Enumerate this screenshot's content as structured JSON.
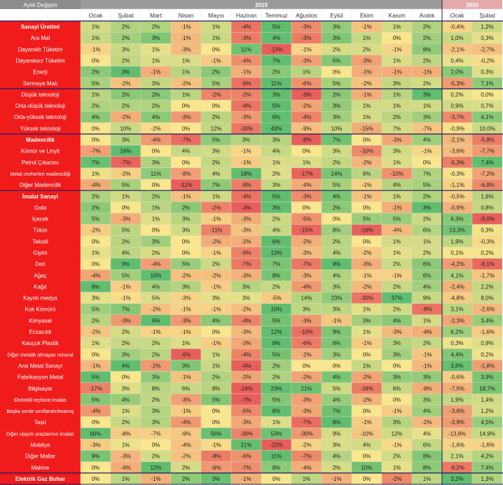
{
  "chart_data": {
    "type": "heatmap",
    "corner_label": "Aylık Değişim",
    "years": [
      {
        "label": "2019",
        "span": 12
      },
      {
        "label": "2020",
        "span": 2
      }
    ],
    "months": [
      "Ocak",
      "Şubat",
      "Mart",
      "Nisan",
      "Mayıs",
      "Haziran",
      "Temmuz",
      "Ağustos",
      "Eylül",
      "Ekim",
      "Kasım",
      "Aralık",
      "Ocak",
      "Şubat"
    ],
    "rows": [
      {
        "label": "Sanayi Üretimi",
        "bold": true,
        "group_start": true,
        "values": [
          "1%",
          "2%",
          "2%",
          "-1%",
          "1%",
          "-4%",
          "5%",
          "-3%",
          "3%",
          "-1%",
          "1%",
          "2%",
          "-0,4%",
          "1,2%"
        ]
      },
      {
        "label": "Ara Mal",
        "values": [
          "1%",
          "2%",
          "3%",
          "-1%",
          "1%",
          "-3%",
          "4%",
          "-3%",
          "3%",
          "1%",
          "0%",
          "2%",
          "1,0%",
          "0,3%"
        ]
      },
      {
        "label": "Dayanıklı Tüketim",
        "values": [
          "-1%",
          "3%",
          "1%",
          "-3%",
          "0%",
          "11%",
          "-13%",
          "-1%",
          "2%",
          "2%",
          "-1%",
          "8%",
          "-2,1%",
          "-2,7%"
        ]
      },
      {
        "label": "Dayanıksız Tüketim",
        "values": [
          "0%",
          "2%",
          "1%",
          "1%",
          "-1%",
          "-4%",
          "7%",
          "-3%",
          "5%",
          "-3%",
          "1%",
          "2%",
          "0,4%",
          "-0,2%"
        ]
      },
      {
        "label": "Enerji",
        "values": [
          "2%",
          "3%",
          "-1%",
          "1%",
          "2%",
          "-1%",
          "2%",
          "1%",
          "0%",
          "-1%",
          "-1%",
          "-1%",
          "2,0%",
          "0,3%"
        ]
      },
      {
        "label": "Sermaye Malı",
        "values": [
          "5%",
          "-2%",
          "3%",
          "-2%",
          "5%",
          "-9%",
          "11%",
          "-6%",
          "5%",
          "-2%",
          "3%",
          "2%",
          "-5,3%",
          "7,1%"
        ]
      },
      {
        "label": "Düşük teknoloji",
        "group_start": true,
        "values": [
          "1%",
          "2%",
          "2%",
          "1%",
          "-2%",
          "-2%",
          "3%",
          "-3%",
          "2%",
          "-1%",
          "1%",
          "3%",
          "0,2%",
          "0,0%"
        ]
      },
      {
        "label": "Orta-düşük teknoloji",
        "values": [
          "2%",
          "2%",
          "2%",
          "0%",
          "0%",
          "-4%",
          "5%",
          "-2%",
          "3%",
          "1%",
          "1%",
          "1%",
          "0,9%",
          "0,7%"
        ]
      },
      {
        "label": "Orta-yüksek teknoloji",
        "values": [
          "4%",
          "-2%",
          "4%",
          "-3%",
          "2%",
          "-3%",
          "6%",
          "-4%",
          "3%",
          "1%",
          "2%",
          "3%",
          "-3,7%",
          "4,1%"
        ]
      },
      {
        "label": "Yüksek teknoloji",
        "values": [
          "0%",
          "10%",
          "-2%",
          "0%",
          "12%",
          "-33%",
          "43%",
          "-9%",
          "10%",
          "-15%",
          "7%",
          "-7%",
          "-0,9%",
          "10,0%"
        ]
      },
      {
        "label": "Madencilik",
        "bold": true,
        "group_start": true,
        "values": [
          "0%",
          "3%",
          "-4%",
          "-7%",
          "5%",
          "3%",
          "3%",
          "-8%",
          "7%",
          "0%",
          "-3%",
          "4%",
          "-2,1%",
          "-5,8%"
        ]
      },
      {
        "label": "Kömür ve Linyit",
        "values": [
          "-7%",
          "16%",
          "0%",
          "4%",
          "3%",
          "-1%",
          "4%",
          "0%",
          "3%",
          "-10%",
          "3%",
          "-1%",
          "-3,6%",
          "-7,7%"
        ]
      },
      {
        "label": "Petrol Çıkarımı",
        "values": [
          "7%",
          "-7%",
          "3%",
          "0%",
          "2%",
          "-1%",
          "1%",
          "1%",
          "2%",
          "-2%",
          "1%",
          "0%",
          "-5,3%",
          "7,4%"
        ]
      },
      {
        "label": "Metal cevherleri madenciliği",
        "values": [
          "1%",
          "-2%",
          "11%",
          "-8%",
          "4%",
          "18%",
          "2%",
          "-17%",
          "14%",
          "6%",
          "-10%",
          "7%",
          "-0,3%",
          "-7,2%"
        ]
      },
      {
        "label": "Diğer Madencilik",
        "values": [
          "-4%",
          "5%",
          "0%",
          "-11%",
          "7%",
          "-8%",
          "3%",
          "-4%",
          "5%",
          "-1%",
          "4%",
          "5%",
          "-1,1%",
          "-6,8%"
        ]
      },
      {
        "label": "İmalat Sanayi",
        "bold": true,
        "group_start": true,
        "values": [
          "2%",
          "1%",
          "2%",
          "-1%",
          "1%",
          "-4%",
          "5%",
          "-3%",
          "4%",
          "-1%",
          "1%",
          "2%",
          "-0,5%",
          "1,6%"
        ]
      },
      {
        "label": "Gıda",
        "values": [
          "2%",
          "0%",
          "1%",
          "2%",
          "-2%",
          "-3%",
          "3%",
          "0%",
          "2%",
          "0%",
          "-1%",
          "3%",
          "-0,9%",
          "0,8%"
        ]
      },
      {
        "label": "İçecek",
        "values": [
          "5%",
          "-3%",
          "1%",
          "3%",
          "-1%",
          "-3%",
          "2%",
          "-5%",
          "0%",
          "5%",
          "5%",
          "2%",
          "6,3%",
          "-9,0%"
        ]
      },
      {
        "label": "Tütün",
        "values": [
          "-2%",
          "5%",
          "0%",
          "3%",
          "-11%",
          "-3%",
          "4%",
          "-15%",
          "8%",
          "-16%",
          "-4%",
          "6%",
          "13,3%",
          "0,3%"
        ]
      },
      {
        "label": "Tekstil",
        "values": [
          "0%",
          "2%",
          "3%",
          "0%",
          "-2%",
          "-2%",
          "6%",
          "-2%",
          "2%",
          "0%",
          "1%",
          "1%",
          "1,9%",
          "-0,3%"
        ]
      },
      {
        "label": "Giyim",
        "values": [
          "1%",
          "4%",
          "2%",
          "0%",
          "-1%",
          "-9%",
          "13%",
          "-3%",
          "4%",
          "-2%",
          "1%",
          "2%",
          "0,1%",
          "0,2%"
        ]
      },
      {
        "label": "Deri",
        "values": [
          "0%",
          "9%",
          "-4%",
          "5%",
          "2%",
          "-7%",
          "7%",
          "-7%",
          "9%",
          "-3%",
          "2%",
          "6%",
          "-4,2%",
          "-8,1%"
        ]
      },
      {
        "label": "Ağaç",
        "values": [
          "-4%",
          "5%",
          "10%",
          "-2%",
          "-2%",
          "-3%",
          "8%",
          "-3%",
          "4%",
          "-1%",
          "-1%",
          "6%",
          "4,1%",
          "-1,7%"
        ]
      },
      {
        "label": "Kağıt",
        "values": [
          "8%",
          "-1%",
          "4%",
          "3%",
          "-1%",
          "3%",
          "2%",
          "-4%",
          "3%",
          "-2%",
          "2%",
          "4%",
          "-2,4%",
          "2,2%"
        ]
      },
      {
        "label": "Kayıtlı medya",
        "values": [
          "3%",
          "-1%",
          "5%",
          "-3%",
          "3%",
          "3%",
          "-5%",
          "14%",
          "23%",
          "-30%",
          "37%",
          "9%",
          "-4,8%",
          "8,0%"
        ]
      },
      {
        "label": "Kok Kömürü",
        "values": [
          "5%",
          "7%",
          "-2%",
          "-1%",
          "-1%",
          "-2%",
          "10%",
          "3%",
          "3%",
          "1%",
          "2%",
          "-8%",
          "3,1%",
          "-2,6%"
        ]
      },
      {
        "label": "Kimyasal",
        "values": [
          "2%",
          "-3%",
          "6%",
          "-3%",
          "4%",
          "-4%",
          "5%",
          "-3%",
          "-1%",
          "3%",
          "4%",
          "1%",
          "-2,3%",
          "3,4%"
        ]
      },
      {
        "label": "Eczacılık",
        "values": [
          "-2%",
          "2%",
          "-1%",
          "-1%",
          "0%",
          "-3%",
          "12%",
          "-10%",
          "9%",
          "1%",
          "-3%",
          "-4%",
          "6,2%",
          "-1,6%"
        ]
      },
      {
        "label": "Kauçuk Plastik",
        "values": [
          "1%",
          "2%",
          "2%",
          "1%",
          "-1%",
          "-3%",
          "8%",
          "-6%",
          "6%",
          "-1%",
          "3%",
          "2%",
          "0,3%",
          "0,9%"
        ]
      },
      {
        "label": "Diğer metalik olmayan mineral",
        "values": [
          "0%",
          "3%",
          "2%",
          "-6%",
          "1%",
          "-4%",
          "5%",
          "-2%",
          "3%",
          "0%",
          "3%",
          "-1%",
          "4,4%",
          "0,2%"
        ]
      },
      {
        "label": "Ana Metal Sanayi",
        "values": [
          "-1%",
          "4%",
          "-2%",
          "3%",
          "1%",
          "-4%",
          "2%",
          "0%",
          "0%",
          "1%",
          "0%",
          "-1%",
          "3,8%",
          "-1,8%"
        ]
      },
      {
        "label": "Fabrikasyon Metal",
        "values": [
          "5%",
          "0%",
          "3%",
          "-1%",
          "2%",
          "-2%",
          "2%",
          "-2%",
          "4%",
          "-2%",
          "3%",
          "3%",
          "-0,6%",
          "3,9%"
        ]
      },
      {
        "label": "Bilgisayar",
        "values": [
          "-17%",
          "3%",
          "8%",
          "6%",
          "8%",
          "-24%",
          "23%",
          "21%",
          "5%",
          "-18%",
          "6%",
          "-8%",
          "-7,5%",
          "18,7%"
        ]
      },
      {
        "label": "Elektrikli teçhizat imalatı",
        "values": [
          "5%",
          "4%",
          "2%",
          "-3%",
          "5%",
          "-7%",
          "5%",
          "-3%",
          "4%",
          "-2%",
          "0%",
          "3%",
          "1,9%",
          "1,4%"
        ]
      },
      {
        "label": "Başka yerde sınıflandırılmamış",
        "values": [
          "-4%",
          "1%",
          "3%",
          "-1%",
          "0%",
          "-5%",
          "8%",
          "-3%",
          "7%",
          "0%",
          "-1%",
          "4%",
          "-3,6%",
          "1,2%"
        ]
      },
      {
        "label": "Taşıt",
        "values": [
          "0%",
          "2%",
          "3%",
          "-4%",
          "0%",
          "-3%",
          "1%",
          "-7%",
          "8%",
          "-1%",
          "3%",
          "-2%",
          "-3,9%",
          "4,5%"
        ]
      },
      {
        "label": "Diğer ulaşım araçlarının imalatı",
        "values": [
          "60%",
          "-8%",
          "-7%",
          "-9%",
          "56%",
          "-39%",
          "53%",
          "-30%",
          "9%",
          "-10%",
          "12%",
          "4%",
          "-13,6%",
          "14,9%"
        ]
      },
      {
        "label": "Mobilya",
        "values": [
          "-3%",
          "1%",
          "0%",
          "-4%",
          "-1%",
          "21%",
          "-22%",
          "-2%",
          "3%",
          "4%",
          "-1%",
          "6%",
          "-1,6%",
          "-1,6%"
        ]
      },
      {
        "label": "Diğer Mallar",
        "values": [
          "9%",
          "-3%",
          "2%",
          "-2%",
          "-8%",
          "-6%",
          "11%",
          "-7%",
          "4%",
          "0%",
          "2%",
          "8%",
          "2,1%",
          "4,2%"
        ]
      },
      {
        "label": "Makine",
        "values": [
          "0%",
          "-4%",
          "12%",
          "2%",
          "-6%",
          "-7%",
          "8%",
          "-4%",
          "2%",
          "10%",
          "1%",
          "8%",
          "-9,2%",
          "7,4%"
        ]
      },
      {
        "label": "Elektrik Gaz Buhar",
        "bold": true,
        "group_start": true,
        "values": [
          "0%",
          "1%",
          "-1%",
          "2%",
          "3%",
          "-1%",
          "0%",
          "1%",
          "-1%",
          "0%",
          "-2%",
          "1%",
          "3,2%",
          "1,3%"
        ]
      }
    ]
  }
}
